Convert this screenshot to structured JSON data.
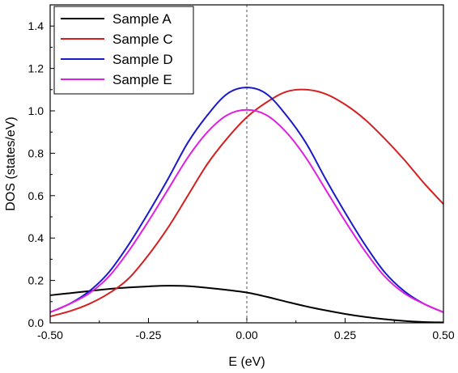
{
  "chart_data": {
    "type": "line",
    "xlabel": "E (eV)",
    "ylabel": "DOS (states/eV)",
    "xlim": [
      -0.5,
      0.5
    ],
    "ylim": [
      0.0,
      1.5
    ],
    "x_ticks": [
      -0.5,
      -0.25,
      0.0,
      0.25,
      0.5
    ],
    "x_tick_labels": [
      "-0.50",
      "-0.25",
      "0.00",
      "0.25",
      "0.50"
    ],
    "y_ticks": [
      0.0,
      0.2,
      0.4,
      0.6,
      0.8,
      1.0,
      1.2,
      1.4
    ],
    "y_tick_labels": [
      "0.0",
      "0.2",
      "0.4",
      "0.6",
      "0.8",
      "1.0",
      "1.2",
      "1.4"
    ],
    "reference_line": {
      "x": 0.0,
      "style": "dashed"
    },
    "grid": false,
    "legend_position": "top-left",
    "x": [
      -0.5,
      -0.45,
      -0.4,
      -0.35,
      -0.3,
      -0.25,
      -0.2,
      -0.15,
      -0.1,
      -0.05,
      0.0,
      0.05,
      0.1,
      0.15,
      0.2,
      0.25,
      0.3,
      0.35,
      0.4,
      0.45,
      0.5
    ],
    "series": [
      {
        "name": "Sample A",
        "color": "#000000",
        "values": [
          0.13,
          0.14,
          0.15,
          0.16,
          0.167,
          0.172,
          0.175,
          0.173,
          0.165,
          0.155,
          0.143,
          0.123,
          0.1,
          0.078,
          0.059,
          0.042,
          0.028,
          0.017,
          0.009,
          0.004,
          0.002
        ]
      },
      {
        "name": "Sample C",
        "color": "#d42020",
        "values": [
          0.03,
          0.055,
          0.09,
          0.14,
          0.21,
          0.32,
          0.45,
          0.6,
          0.75,
          0.87,
          0.97,
          1.04,
          1.09,
          1.1,
          1.08,
          1.03,
          0.96,
          0.87,
          0.77,
          0.66,
          0.56
        ]
      },
      {
        "name": "Sample D",
        "color": "#1a1ac8",
        "values": [
          0.05,
          0.09,
          0.15,
          0.24,
          0.37,
          0.52,
          0.68,
          0.85,
          0.98,
          1.08,
          1.11,
          1.08,
          0.98,
          0.85,
          0.68,
          0.52,
          0.37,
          0.24,
          0.15,
          0.09,
          0.05
        ]
      },
      {
        "name": "Sample E",
        "color": "#e020e0",
        "values": [
          0.05,
          0.09,
          0.14,
          0.22,
          0.34,
          0.48,
          0.63,
          0.78,
          0.9,
          0.98,
          1.005,
          0.98,
          0.9,
          0.78,
          0.63,
          0.48,
          0.34,
          0.22,
          0.14,
          0.09,
          0.05
        ]
      }
    ]
  }
}
